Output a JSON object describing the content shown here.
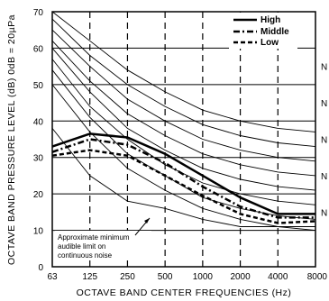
{
  "chart_data": {
    "type": "line",
    "xlabel": "OCTAVE  BAND  CENTER  FREQUENCIES (Hz)",
    "ylabel": "OCTAVE  BAND  PRESSURE  LEVEL (dB) 0dB = 20µPa",
    "x": [
      "63",
      "125",
      "250",
      "500",
      "1000",
      "2000",
      "4000",
      "8000"
    ],
    "ylim": [
      0,
      70
    ],
    "yticks": [
      0,
      10,
      20,
      30,
      40,
      50,
      60,
      70
    ],
    "grid": true,
    "legend_position": "top-right",
    "series": [
      {
        "name": "High",
        "style": "solid",
        "values": [
          33,
          36.5,
          35.5,
          31,
          25,
          19,
          14.5,
          14.5
        ]
      },
      {
        "name": "Middle",
        "style": "dash-dot",
        "values": [
          31.5,
          35,
          33.5,
          28.5,
          22,
          16.5,
          13.5,
          13.5
        ]
      },
      {
        "name": "Low",
        "style": "dashed",
        "values": [
          30.5,
          32,
          30.5,
          25,
          19.5,
          14.5,
          12,
          12.5
        ]
      }
    ],
    "nc_curves": [
      {
        "values": [
          70,
          62,
          54,
          48,
          43,
          40,
          38,
          37
        ]
      },
      {
        "values": [
          68,
          58,
          50,
          44,
          39,
          36,
          34,
          33
        ]
      },
      {
        "values": [
          65,
          55,
          46,
          40,
          35,
          32,
          30,
          29
        ]
      },
      {
        "values": [
          62,
          51,
          42,
          36,
          31,
          28,
          26,
          25
        ]
      },
      {
        "values": [
          60,
          48,
          38,
          32,
          27,
          24,
          22,
          21
        ]
      },
      {
        "values": [
          57,
          44,
          35,
          28,
          23,
          20,
          18,
          17
        ]
      },
      {
        "values": [
          54,
          41,
          31,
          25,
          19,
          16,
          14,
          13
        ]
      },
      {
        "values": [
          50,
          37,
          27,
          21,
          16,
          13,
          11,
          10
        ]
      }
    ],
    "threshold_curve": {
      "label": "Approximate minimum audible limit on continuous noise",
      "values": [
        38,
        25,
        18,
        16,
        13,
        11,
        11,
        11
      ]
    },
    "nc_labels": [
      "N",
      "N",
      "N",
      "N",
      "N"
    ],
    "nc_label_levels": [
      55,
      45,
      35,
      25,
      15
    ]
  }
}
